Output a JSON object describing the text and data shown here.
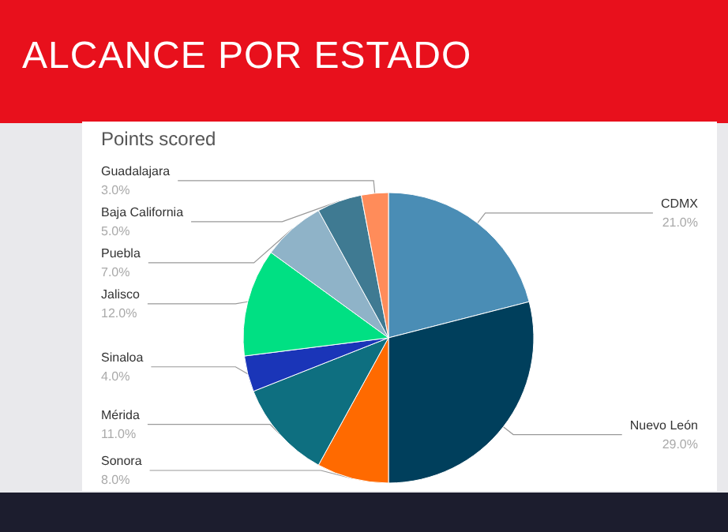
{
  "chart_data": {
    "type": "pie",
    "title": "ALCANCE POR ESTADO",
    "subtitle": "Points scored",
    "categories": [
      "CDMX",
      "Nuevo León",
      "Sonora",
      "Mérida",
      "Sinaloa",
      "Jalisco",
      "Puebla",
      "Baja California",
      "Guadalajara"
    ],
    "values": [
      21,
      29,
      8,
      11,
      4,
      12,
      7,
      5,
      3
    ],
    "value_labels": [
      "21.0%",
      "29.0%",
      "8.0%",
      "11.0%",
      "4.0%",
      "12.0%",
      "7.0%",
      "5.0%",
      "3.0%"
    ],
    "colors": [
      "#4a8db5",
      "#003f5c",
      "#ff6a00",
      "#0e6f80",
      "#1a35b8",
      "#00e083",
      "#8fb3c8",
      "#3f7a92",
      "#ff8c5a"
    ]
  }
}
